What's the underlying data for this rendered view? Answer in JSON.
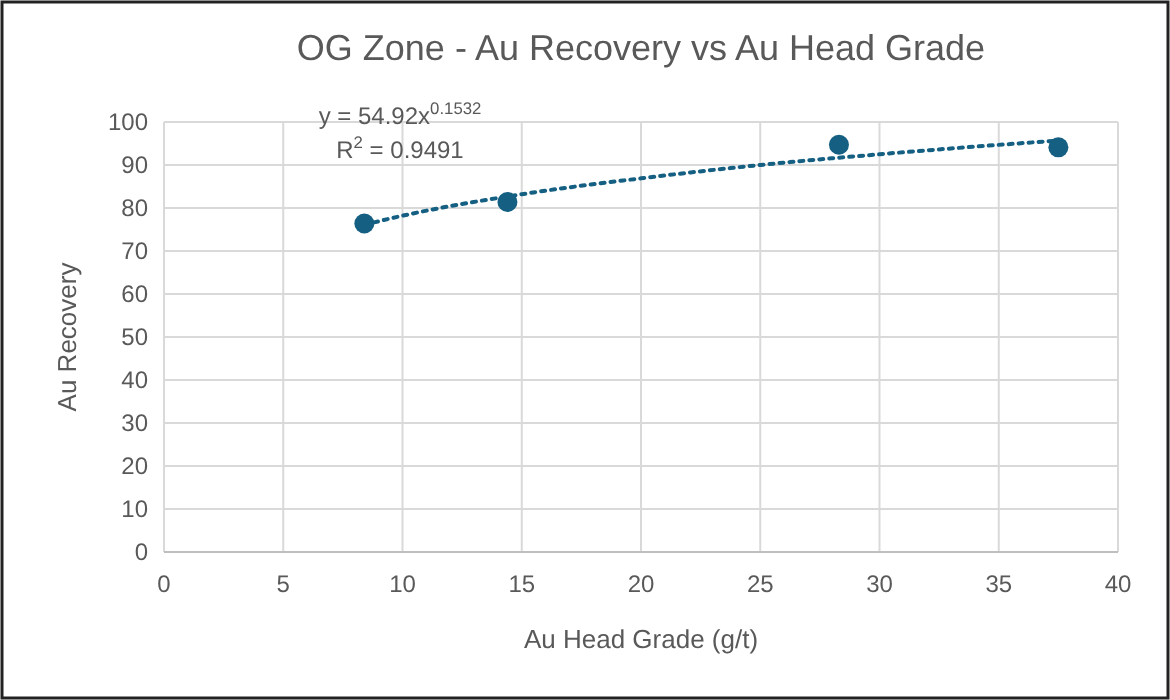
{
  "chart_data": {
    "type": "scatter",
    "title": "OG Zone - Au Recovery vs Au Head Grade",
    "xlabel": "Au Head Grade (g/t)",
    "ylabel": "Au Recovery",
    "xlim": [
      0,
      40
    ],
    "xticks": [
      0,
      5,
      10,
      15,
      20,
      25,
      30,
      35,
      40
    ],
    "ylim": [
      0,
      100
    ],
    "yticks": [
      0,
      10,
      20,
      30,
      40,
      50,
      60,
      70,
      80,
      90,
      100
    ],
    "grid": true,
    "marker": "circle",
    "series": [
      {
        "color": "#156082",
        "x": [
          8.4,
          14.4,
          28.3,
          37.5
        ],
        "values": [
          76.4,
          81.4,
          94.7,
          94.1
        ]
      },
      {
        "type": "line",
        "color": "#156082",
        "line_style": "dotted",
        "marker": "none",
        "x": [
          8.4,
          10,
          15,
          20,
          25,
          30,
          37.5
        ],
        "values": [
          76.1,
          78.2,
          83.2,
          86.9,
          90.0,
          92.5,
          95.7
        ]
      }
    ],
    "annotations": [
      "y = 54.92x$^{0.1532}$",
      "R$^{2}$ = 0.9491"
    ]
  }
}
